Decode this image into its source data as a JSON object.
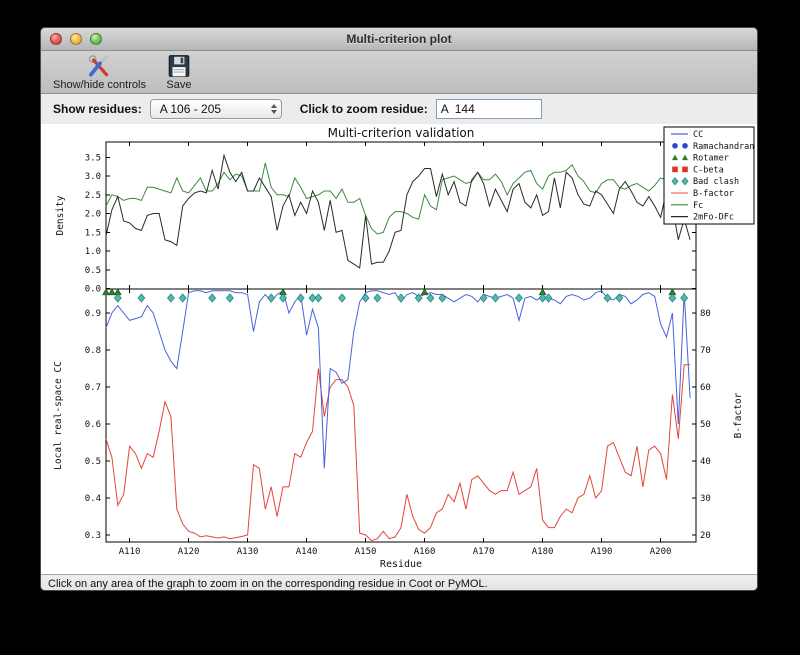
{
  "window": {
    "title": "Multi-criterion plot"
  },
  "toolbar": {
    "show_hide_label": "Show/hide controls",
    "save_label": "Save"
  },
  "controls": {
    "show_residues_label": "Show residues:",
    "residue_range_value": "A 106 - 205",
    "zoom_residue_label": "Click to zoom residue:",
    "zoom_residue_value": "A  144"
  },
  "statusbar": {
    "message": "Click on any area of the graph to zoom in on the corresponding residue in Coot or PyMOL."
  },
  "chart_data": {
    "type": "line",
    "title": "Multi-criterion validation",
    "xlabel": "Residue",
    "x_start": 106,
    "xlim": [
      106,
      206
    ],
    "x_tick_values": [
      110,
      120,
      130,
      140,
      150,
      160,
      170,
      180,
      190,
      200
    ],
    "x_tick_labels": [
      "A110",
      "A120",
      "A130",
      "A140",
      "A150",
      "A160",
      "A170",
      "A180",
      "A190",
      "A200"
    ],
    "top": {
      "ylabel": "Density",
      "ylim": [
        0.0,
        3.9
      ],
      "ytick_values": [
        0.0,
        0.5,
        1.0,
        1.5,
        2.0,
        2.5,
        3.0,
        3.5
      ],
      "ytick_labels": [
        "0.0",
        "0.5",
        "1.0",
        "1.5",
        "2.0",
        "2.5",
        "3.0",
        "3.5"
      ],
      "series": [
        {
          "name": "Fc",
          "color": "#3c8b3c",
          "values": [
            2.2,
            2.5,
            2.45,
            2.35,
            2.4,
            2.4,
            2.35,
            2.7,
            2.7,
            2.65,
            2.6,
            2.55,
            2.95,
            2.6,
            2.55,
            2.75,
            2.95,
            2.6,
            2.6,
            2.8,
            3.1,
            2.9,
            3.05,
            3.0,
            2.6,
            2.6,
            2.6,
            3.35,
            2.7,
            2.5,
            2.5,
            2.45,
            2.95,
            2.7,
            2.4,
            2.45,
            2.5,
            2.6,
            2.6,
            2.4,
            2.65,
            2.3,
            2.3,
            2.4,
            1.95,
            1.6,
            1.45,
            1.5,
            1.9,
            2.05,
            2.05,
            2.0,
            1.9,
            1.85,
            2.5,
            2.2,
            2.1,
            2.9,
            2.95,
            3.0,
            2.9,
            2.8,
            2.85,
            3.1,
            2.9,
            2.9,
            3.05,
            2.85,
            2.5,
            2.8,
            2.95,
            3.1,
            3.15,
            2.8,
            2.65,
            3.0,
            3.1,
            3.1,
            3.15,
            3.3,
            3.0,
            2.85,
            2.6,
            2.55,
            2.8,
            2.9,
            2.9,
            2.7,
            2.65,
            2.75,
            2.8,
            2.7,
            2.6,
            2.75,
            2.95,
            2.9,
            2.8,
            2.4,
            2.9,
            2.85
          ]
        },
        {
          "name": "2mFo-DFc",
          "color": "#2a2a2a",
          "values": [
            1.4,
            2.1,
            2.45,
            1.8,
            1.75,
            1.6,
            1.55,
            1.95,
            2.0,
            2.0,
            1.3,
            1.25,
            1.15,
            2.2,
            2.4,
            2.55,
            2.6,
            2.55,
            3.15,
            2.65,
            3.55,
            3.1,
            2.85,
            3.1,
            2.6,
            2.6,
            2.95,
            2.7,
            2.45,
            1.55,
            2.2,
            2.5,
            1.95,
            2.3,
            2.0,
            2.6,
            2.3,
            1.55,
            2.35,
            1.5,
            1.55,
            0.75,
            0.65,
            0.55,
            1.95,
            0.65,
            0.7,
            0.7,
            1.0,
            1.5,
            1.55,
            2.5,
            2.85,
            3.0,
            3.2,
            3.2,
            2.45,
            3.05,
            2.5,
            2.85,
            2.3,
            2.2,
            2.9,
            3.1,
            2.8,
            2.2,
            2.65,
            2.35,
            2.05,
            2.65,
            2.8,
            2.3,
            2.15,
            2.5,
            1.95,
            2.05,
            2.95,
            2.15,
            3.1,
            2.95,
            2.5,
            2.25,
            2.2,
            2.6,
            2.5,
            2.25,
            2.0,
            2.65,
            2.85,
            2.6,
            2.3,
            2.2,
            2.45,
            2.2,
            1.9,
            2.6,
            2.2,
            1.3,
            1.85,
            1.3
          ]
        }
      ]
    },
    "bottom": {
      "ylabel_left": "Local real-space CC",
      "ylabel_left_color": "#4a63d8",
      "ylim_left": [
        0.281,
        0.965
      ],
      "ytick_left_values": [
        0.3,
        0.4,
        0.5,
        0.6,
        0.7,
        0.8,
        0.9
      ],
      "ytick_left_labels": [
        "0.3",
        "0.4",
        "0.5",
        "0.6",
        "0.7",
        "0.8",
        "0.9"
      ],
      "ylabel_right": "B-factor",
      "ylabel_right_color": "#e3453a",
      "ylim_right": [
        18.1,
        86.5
      ],
      "ytick_right_values": [
        20,
        30,
        40,
        50,
        60,
        70,
        80
      ],
      "ytick_right_labels": [
        "20",
        "30",
        "40",
        "50",
        "60",
        "70",
        "80"
      ],
      "series": [
        {
          "name": "CC",
          "axis": "left",
          "color": "#4a63d8",
          "values": [
            0.86,
            0.9,
            0.92,
            0.9,
            0.88,
            0.885,
            0.89,
            0.92,
            0.9,
            0.85,
            0.8,
            0.77,
            0.75,
            0.85,
            0.955,
            0.96,
            0.96,
            0.955,
            0.96,
            0.96,
            0.96,
            0.96,
            0.955,
            0.955,
            0.95,
            0.85,
            0.93,
            0.95,
            0.93,
            0.95,
            0.96,
            0.9,
            0.93,
            0.95,
            0.84,
            0.91,
            0.86,
            0.48,
            0.75,
            0.74,
            0.71,
            0.72,
            0.85,
            0.93,
            0.955,
            0.96,
            0.96,
            0.955,
            0.95,
            0.955,
            0.93,
            0.95,
            0.955,
            0.945,
            0.95,
            0.955,
            0.95,
            0.95,
            0.94,
            0.93,
            0.94,
            0.95,
            0.945,
            0.93,
            0.95,
            0.945,
            0.94,
            0.945,
            0.95,
            0.94,
            0.88,
            0.94,
            0.945,
            0.935,
            0.945,
            0.94,
            0.935,
            0.925,
            0.945,
            0.95,
            0.945,
            0.935,
            0.94,
            0.955,
            0.96,
            0.94,
            0.935,
            0.95,
            0.945,
            0.925,
            0.935,
            0.95,
            0.955,
            0.945,
            0.87,
            0.835,
            0.9,
            0.6,
            0.955,
            0.67
          ]
        },
        {
          "name": "B-factor",
          "axis": "right",
          "color": "#e3453a",
          "values": [
            46,
            41,
            28,
            31,
            44,
            42,
            38,
            42,
            41,
            48,
            56,
            52,
            27,
            23,
            21,
            20.5,
            19.5,
            19.8,
            19.5,
            19.2,
            19.5,
            19.0,
            19.3,
            19.6,
            20,
            39,
            38,
            27,
            33,
            25,
            33,
            33,
            42,
            41,
            45,
            48,
            65,
            52,
            60,
            62,
            62,
            60,
            55,
            20.5,
            20,
            18.5,
            19,
            21,
            19,
            19.5,
            22,
            31,
            25,
            21.5,
            20.5,
            22,
            26,
            27,
            31,
            29,
            34,
            27,
            35,
            36,
            34,
            32,
            31,
            32,
            32,
            37,
            31,
            32,
            33,
            38,
            24,
            22,
            22,
            25,
            27,
            26,
            30,
            31,
            36,
            30,
            32,
            44,
            45,
            41,
            37,
            36,
            44,
            33,
            43,
            44,
            42,
            35,
            58,
            46,
            66,
            66
          ]
        }
      ],
      "markers": {
        "bad_clash_residues": [
          108,
          112,
          117,
          119,
          124,
          127,
          134,
          136,
          139,
          141,
          142,
          146,
          150,
          152,
          156,
          159,
          161,
          163,
          170,
          172,
          176,
          180,
          181,
          191,
          193,
          202,
          204
        ],
        "bad_clash_fill": "#53b8b0",
        "bad_clash_edge": "#25877d",
        "rotamer_residues": [
          106,
          107,
          108,
          136,
          160,
          180,
          202
        ],
        "rotamer_color": "#2e7d2e"
      }
    },
    "legend": {
      "entries": [
        {
          "label": "CC",
          "type": "line",
          "color": "#4a63d8"
        },
        {
          "label": "Ramachandran",
          "type": "circle",
          "color": "#2b43cf"
        },
        {
          "label": "Rotamer",
          "type": "triangle",
          "color": "#2e7d2e"
        },
        {
          "label": "C-beta",
          "type": "square",
          "color": "#df3326"
        },
        {
          "label": "Bad clash",
          "type": "diamond",
          "color": "#53b8b0",
          "edge": "#25877d"
        },
        {
          "label": "B-factor",
          "type": "line",
          "color": "#f26a5e"
        },
        {
          "label": "Fc",
          "type": "line",
          "color": "#3c8b3c"
        },
        {
          "label": "2mFo-DFc",
          "type": "line",
          "color": "#2a2a2a"
        }
      ]
    }
  }
}
